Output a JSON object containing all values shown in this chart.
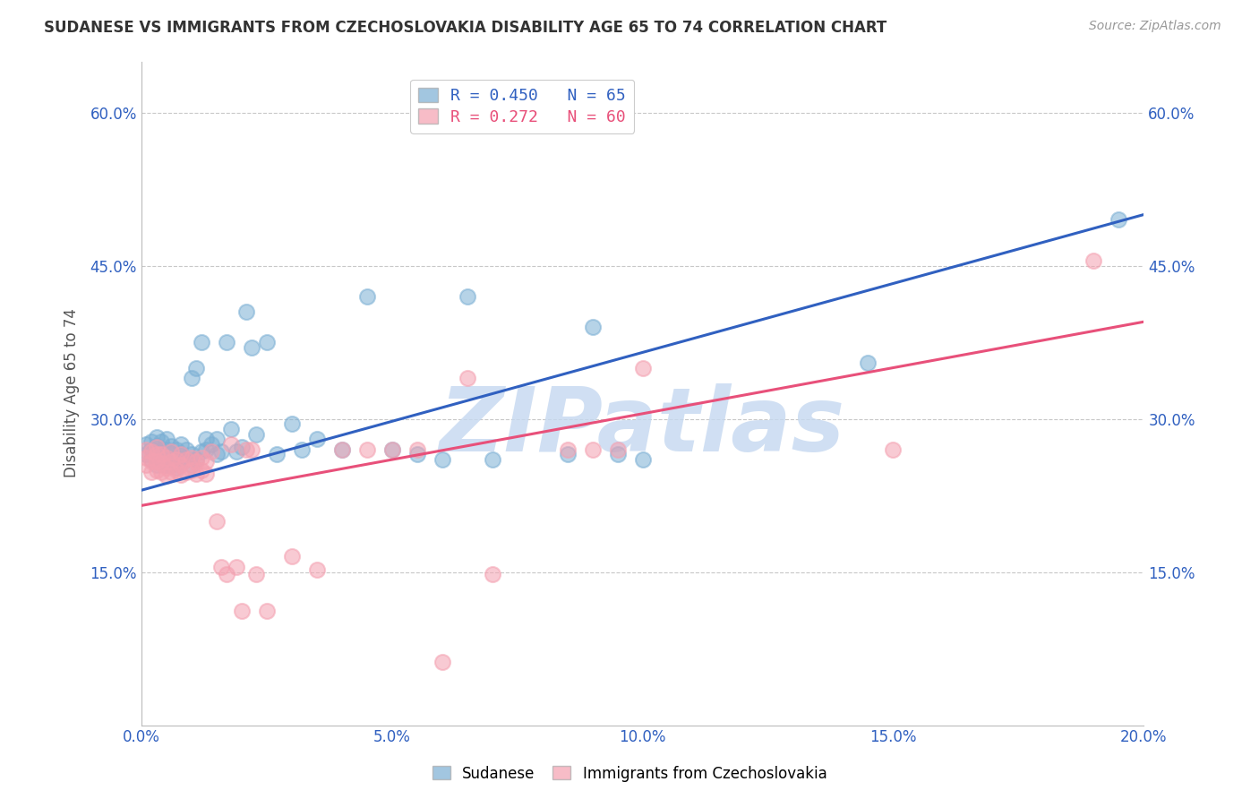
{
  "title": "SUDANESE VS IMMIGRANTS FROM CZECHOSLOVAKIA DISABILITY AGE 65 TO 74 CORRELATION CHART",
  "source": "Source: ZipAtlas.com",
  "ylabel": "Disability Age 65 to 74",
  "xlim": [
    0.0,
    0.2
  ],
  "ylim": [
    0.0,
    0.65
  ],
  "xticks": [
    0.0,
    0.05,
    0.1,
    0.15,
    0.2
  ],
  "yticks": [
    0.15,
    0.3,
    0.45,
    0.6
  ],
  "ytick_labels": [
    "15.0%",
    "30.0%",
    "45.0%",
    "60.0%"
  ],
  "xtick_labels": [
    "0.0%",
    "5.0%",
    "10.0%",
    "15.0%",
    "20.0%"
  ],
  "blue_color": "#7BAFD4",
  "pink_color": "#F4A0B0",
  "trend_blue": "#3060C0",
  "trend_pink": "#E8507A",
  "legend_label_blue": "Sudanese",
  "legend_label_pink": "Immigrants from Czechoslovakia",
  "blue_R": "R = 0.450",
  "blue_N": "N = 65",
  "pink_R": "R = 0.272",
  "pink_N": "N = 60",
  "blue_trend_x0": 0.0,
  "blue_trend_y0": 0.23,
  "blue_trend_x1": 0.2,
  "blue_trend_y1": 0.5,
  "pink_trend_x0": 0.0,
  "pink_trend_y0": 0.215,
  "pink_trend_x1": 0.2,
  "pink_trend_y1": 0.395,
  "blue_points_x": [
    0.001,
    0.001,
    0.002,
    0.002,
    0.002,
    0.003,
    0.003,
    0.003,
    0.003,
    0.004,
    0.004,
    0.004,
    0.005,
    0.005,
    0.005,
    0.005,
    0.006,
    0.006,
    0.006,
    0.007,
    0.007,
    0.007,
    0.008,
    0.008,
    0.008,
    0.009,
    0.009,
    0.01,
    0.01,
    0.01,
    0.011,
    0.011,
    0.012,
    0.012,
    0.013,
    0.013,
    0.014,
    0.015,
    0.015,
    0.016,
    0.017,
    0.018,
    0.019,
    0.02,
    0.021,
    0.022,
    0.023,
    0.025,
    0.027,
    0.03,
    0.032,
    0.035,
    0.04,
    0.045,
    0.05,
    0.055,
    0.06,
    0.065,
    0.07,
    0.085,
    0.09,
    0.095,
    0.1,
    0.145,
    0.195
  ],
  "blue_points_y": [
    0.265,
    0.275,
    0.26,
    0.27,
    0.278,
    0.255,
    0.265,
    0.273,
    0.282,
    0.258,
    0.268,
    0.278,
    0.255,
    0.263,
    0.27,
    0.28,
    0.255,
    0.265,
    0.273,
    0.252,
    0.26,
    0.27,
    0.258,
    0.265,
    0.275,
    0.26,
    0.27,
    0.255,
    0.265,
    0.34,
    0.26,
    0.35,
    0.268,
    0.375,
    0.27,
    0.28,
    0.275,
    0.265,
    0.28,
    0.268,
    0.375,
    0.29,
    0.268,
    0.272,
    0.405,
    0.37,
    0.285,
    0.375,
    0.265,
    0.295,
    0.27,
    0.28,
    0.27,
    0.42,
    0.27,
    0.265,
    0.26,
    0.42,
    0.26,
    0.265,
    0.39,
    0.265,
    0.26,
    0.355,
    0.495
  ],
  "pink_points_x": [
    0.001,
    0.001,
    0.001,
    0.002,
    0.002,
    0.002,
    0.003,
    0.003,
    0.003,
    0.003,
    0.004,
    0.004,
    0.004,
    0.005,
    0.005,
    0.005,
    0.006,
    0.006,
    0.006,
    0.007,
    0.007,
    0.008,
    0.008,
    0.008,
    0.009,
    0.009,
    0.01,
    0.01,
    0.011,
    0.011,
    0.012,
    0.012,
    0.013,
    0.013,
    0.014,
    0.015,
    0.016,
    0.017,
    0.018,
    0.019,
    0.02,
    0.021,
    0.022,
    0.023,
    0.025,
    0.03,
    0.035,
    0.04,
    0.045,
    0.05,
    0.055,
    0.06,
    0.065,
    0.07,
    0.085,
    0.09,
    0.095,
    0.1,
    0.15,
    0.19
  ],
  "pink_points_y": [
    0.255,
    0.262,
    0.27,
    0.248,
    0.258,
    0.268,
    0.25,
    0.258,
    0.265,
    0.272,
    0.248,
    0.257,
    0.265,
    0.244,
    0.252,
    0.262,
    0.248,
    0.258,
    0.268,
    0.25,
    0.26,
    0.245,
    0.255,
    0.265,
    0.248,
    0.26,
    0.25,
    0.262,
    0.246,
    0.258,
    0.25,
    0.262,
    0.246,
    0.258,
    0.268,
    0.2,
    0.155,
    0.148,
    0.275,
    0.155,
    0.112,
    0.27,
    0.27,
    0.148,
    0.112,
    0.165,
    0.152,
    0.27,
    0.27,
    0.27,
    0.27,
    0.062,
    0.34,
    0.148,
    0.27,
    0.27,
    0.27,
    0.35,
    0.27,
    0.455
  ],
  "watermark": "ZIPatlas",
  "watermark_color": "#C5D8F0",
  "figsize": [
    14.06,
    8.92
  ],
  "dpi": 100
}
